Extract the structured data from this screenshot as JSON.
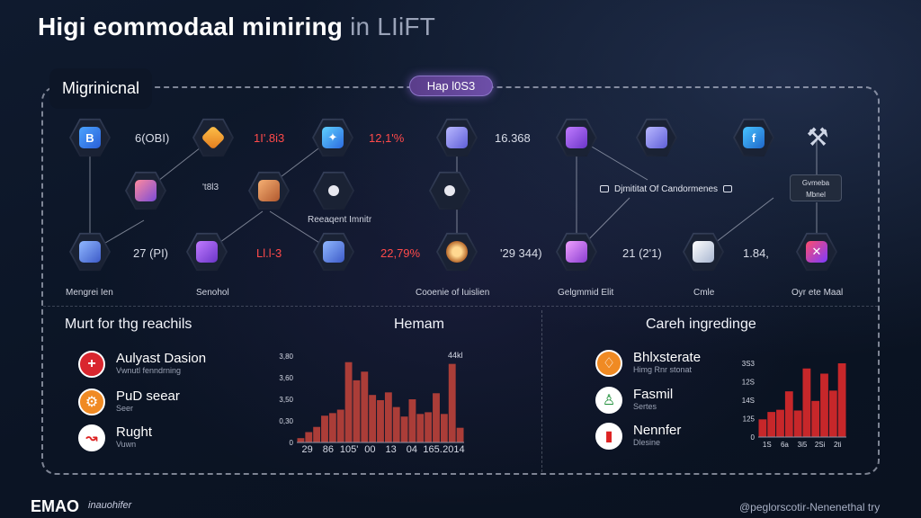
{
  "title": {
    "main": "Higi eommodaal miniring",
    "suffix": "in LIiFT"
  },
  "panel": {
    "label": "Migrinicnal",
    "badge": "Hap l0S3"
  },
  "nodes": [
    {
      "icon": "wallet-icon",
      "glyph": "B",
      "color_class": "g-blue"
    },
    {
      "icon": "diamond-icon",
      "glyph": "",
      "color_class": "g-orange"
    },
    {
      "icon": "cube-icon",
      "glyph": "✦",
      "color_class": "g-cyan"
    },
    {
      "icon": "server-icon",
      "glyph": "",
      "color_class": "g-violet"
    },
    {
      "icon": "processor-icon",
      "glyph": "",
      "color_class": "g-purple"
    },
    {
      "icon": "phone-icon",
      "glyph": "",
      "color_class": "g-violet"
    },
    {
      "icon": "coin-icon",
      "glyph": "f",
      "color_class": "g-teal"
    },
    {
      "icon": "crate-icon",
      "glyph": "",
      "color_class": "g-pink"
    },
    {
      "icon": "box-icon",
      "glyph": "",
      "color_class": "g-box"
    },
    {
      "icon": "drop-icon",
      "glyph": "",
      "color_class": "g-dot"
    },
    {
      "icon": "drop-icon",
      "glyph": "",
      "color_class": "g-dot"
    },
    {
      "icon": "cube-stack-icon",
      "glyph": "",
      "color_class": "g-chart"
    },
    {
      "icon": "shield-icon",
      "glyph": "",
      "color_class": "g-purple"
    },
    {
      "icon": "dashboard-icon",
      "glyph": "",
      "color_class": "g-chart"
    },
    {
      "icon": "gear-icon",
      "glyph": "",
      "color_class": "g-gear"
    },
    {
      "icon": "pickaxe-icon",
      "glyph": "",
      "color_class": "g-bag"
    },
    {
      "icon": "envelope-icon",
      "glyph": "",
      "color_class": "g-white"
    },
    {
      "icon": "cross-tools-icon",
      "glyph": "✕",
      "color_class": "g-fire"
    }
  ],
  "labels": {
    "top1": "6(OBI)",
    "top2": "1I'.8i3",
    "top3": "12,1'%",
    "top4": "16.368",
    "mid1": "'t8l3",
    "mid_caption": "Reeaqent Imnitr",
    "row1": "27 (PI)",
    "row2": "Ll.l-3",
    "row3": "22,79%",
    "row4": "'29 344)",
    "row5": "21 (2'1)",
    "row6": "1.84,",
    "cap1": "Mengrei Ien",
    "cap2": "Senohol",
    "cap3": "Cooenie of Iuislien",
    "cap4": "Gelgmmid Elit",
    "cap5": "Cmle",
    "cap6": "Oyr ete Maal"
  },
  "dark_card": {
    "label": "Djmititat Of Candormenes"
  },
  "side_card": {
    "line1": "Gvmeba",
    "line2": "Mbnel"
  },
  "left_section": {
    "title": "Murt for thg reachils",
    "items": [
      {
        "main": "Aulyast Dasion",
        "sub": "Vwnutl fenndrning",
        "glyph": "+",
        "style": "c-red"
      },
      {
        "main": "PuD seear",
        "sub": "Seer",
        "glyph": "⚙",
        "style": "c-orange"
      },
      {
        "main": "Rught",
        "sub": "Vuwn",
        "glyph": "↝",
        "style": "c-white"
      }
    ]
  },
  "mid_section": {
    "title": "Hemam",
    "peak_label": "44kl"
  },
  "right_section": {
    "title": "Careh ingredinge",
    "items": [
      {
        "main": "Bhlxsterate",
        "sub": "Himg Rnr stonat",
        "glyph": "♢",
        "style": "c-orange"
      },
      {
        "main": "Fasmil",
        "sub": "Sertes",
        "glyph": "♙",
        "style": "c-green"
      },
      {
        "main": "Nennfer",
        "sub": "Dlesine",
        "glyph": "▮",
        "style": "c-white"
      }
    ]
  },
  "chart_data": [
    {
      "type": "bar",
      "title": "Hemam",
      "annotation": "44kl",
      "ytick_labels": [
        "3,80",
        "3,60",
        "3,50",
        "0,30",
        "0"
      ],
      "xtick_labels": [
        "29",
        "86",
        "105'",
        "00",
        "13",
        "04",
        "165.",
        "2014"
      ],
      "ylim": [
        0,
        10
      ],
      "values": [
        0.5,
        1.2,
        1.8,
        3.1,
        3.4,
        3.8,
        9.3,
        7.2,
        8.2,
        5.5,
        4.9,
        5.8,
        4.1,
        3.0,
        5.0,
        3.3,
        3.5,
        5.7,
        3.3,
        9.1,
        1.7
      ],
      "color": "#b8413a"
    },
    {
      "type": "bar",
      "title": "Careh ingredinge",
      "ytick_labels": [
        "3S3",
        "12S",
        "14S",
        "125",
        "0"
      ],
      "xtick_labels": [
        "1S",
        "6a",
        "3i5",
        "2Si",
        "2ti"
      ],
      "ylim": [
        0,
        10
      ],
      "values": [
        2.4,
        3.4,
        3.7,
        6.2,
        3.6,
        9.3,
        4.9,
        8.6,
        6.3,
        10.0
      ],
      "color": "#d8292b"
    }
  ],
  "footer": {
    "logo": "EMAO",
    "tagline": "inauohifer",
    "right": "@peglorscotir-Nenenethal try"
  }
}
